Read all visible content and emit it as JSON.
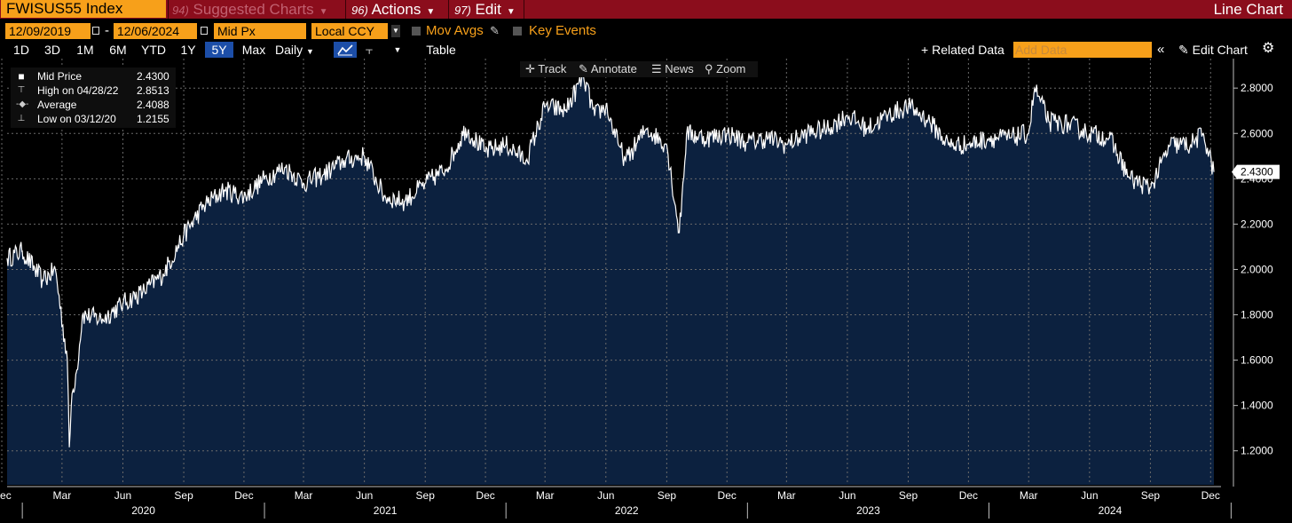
{
  "top": {
    "ticker": "FWISUS55 Index",
    "menu_suggested": {
      "num": "94)",
      "label": "Suggested Charts"
    },
    "menu_actions": {
      "num": "96)",
      "label": "Actions"
    },
    "menu_edit": {
      "num": "97)",
      "label": "Edit"
    },
    "chart_type": "Line Chart"
  },
  "controls": {
    "start_date": "12/09/2019",
    "dash": "-",
    "end_date": "12/06/2024",
    "field": "Mid Px",
    "currency": "Local CCY",
    "mov_avgs": "Mov Avgs",
    "key_events": "Key Events"
  },
  "ranges": [
    "1D",
    "3D",
    "1M",
    "6M",
    "YTD",
    "1Y",
    "5Y",
    "Max"
  ],
  "active_range": "5Y",
  "periodicity": "Daily",
  "table_label": "Table",
  "related": "Related Data",
  "add_data_placeholder": "Add Data",
  "edit_chart": "Edit Chart",
  "tools": [
    "Track",
    "Annotate",
    "News",
    "Zoom"
  ],
  "legend": {
    "mid_label": "Mid Price",
    "mid_value": "2.4300",
    "high_label": "High on 04/28/22",
    "high_value": "2.8513",
    "avg_label": "Average",
    "avg_value": "2.4088",
    "low_label": "Low on 03/12/20",
    "low_value": "1.2155"
  },
  "last_value_tag": "2.4300",
  "icons": [
    "calendar-icon",
    "dropdown-icon",
    "pencil-icon",
    "line-chart-icon",
    "bar-chart-icon",
    "plus-icon",
    "double-chevron-icon",
    "gear-icon",
    "crosshair-icon",
    "news-icon",
    "zoom-icon"
  ],
  "colors": {
    "accent": "#f7a01a",
    "header": "#8b0d1c",
    "area": "#0c213f",
    "line": "#ffffff",
    "active": "#1c4ea8"
  },
  "chart_data": {
    "type": "area",
    "x": [
      "2019-12-09",
      "2020-01-01",
      "2020-02-01",
      "2020-02-20",
      "2020-03-09",
      "2020-03-12",
      "2020-03-16",
      "2020-03-23",
      "2020-04-01",
      "2020-05-01",
      "2020-06-01",
      "2020-07-01",
      "2020-08-01",
      "2020-09-01",
      "2020-10-01",
      "2020-11-01",
      "2020-12-01",
      "2021-01-01",
      "2021-02-01",
      "2021-03-01",
      "2021-04-01",
      "2021-05-01",
      "2021-06-01",
      "2021-07-01",
      "2021-08-01",
      "2021-09-01",
      "2021-10-01",
      "2021-11-01",
      "2021-12-01",
      "2022-01-01",
      "2022-02-01",
      "2022-03-01",
      "2022-04-01",
      "2022-04-28",
      "2022-05-15",
      "2022-06-01",
      "2022-06-20",
      "2022-07-01",
      "2022-08-01",
      "2022-09-01",
      "2022-09-20",
      "2022-10-01",
      "2022-11-01",
      "2022-12-01",
      "2023-01-01",
      "2023-02-01",
      "2023-03-01",
      "2023-04-01",
      "2023-05-01",
      "2023-06-01",
      "2023-07-01",
      "2023-08-01",
      "2023-09-01",
      "2023-10-01",
      "2023-11-01",
      "2023-12-01",
      "2024-01-01",
      "2024-02-01",
      "2024-03-01",
      "2024-03-10",
      "2024-04-01",
      "2024-05-01",
      "2024-06-01",
      "2024-07-01",
      "2024-08-01",
      "2024-09-01",
      "2024-10-01",
      "2024-11-01",
      "2024-11-20",
      "2024-12-06"
    ],
    "values": [
      2.05,
      2.08,
      1.95,
      2.0,
      1.6,
      1.2155,
      1.45,
      1.55,
      1.8,
      1.78,
      1.85,
      1.9,
      1.98,
      2.15,
      2.28,
      2.35,
      2.32,
      2.4,
      2.45,
      2.38,
      2.42,
      2.48,
      2.5,
      2.32,
      2.3,
      2.38,
      2.44,
      2.62,
      2.52,
      2.55,
      2.48,
      2.72,
      2.7,
      2.8513,
      2.68,
      2.72,
      2.55,
      2.48,
      2.62,
      2.55,
      2.16,
      2.6,
      2.58,
      2.6,
      2.56,
      2.58,
      2.55,
      2.6,
      2.62,
      2.68,
      2.62,
      2.68,
      2.72,
      2.66,
      2.55,
      2.55,
      2.58,
      2.58,
      2.6,
      2.8,
      2.65,
      2.64,
      2.6,
      2.58,
      2.4,
      2.36,
      2.55,
      2.55,
      2.6,
      2.43
    ],
    "x_ticks": [
      "Dec",
      "Mar",
      "Jun",
      "Sep",
      "Dec",
      "Mar",
      "Jun",
      "Sep",
      "Dec",
      "Mar",
      "Jun",
      "Sep",
      "Dec",
      "Mar",
      "Jun",
      "Sep",
      "Dec",
      "Mar",
      "Jun",
      "Sep",
      "Dec"
    ],
    "x_years": [
      "2020",
      "2021",
      "2022",
      "2023",
      "2024"
    ],
    "y_ticks": [
      "1.2000",
      "1.4000",
      "1.6000",
      "1.8000",
      "2.0000",
      "2.2000",
      "2.4000",
      "2.6000",
      "2.8000"
    ],
    "ylim": [
      1.05,
      2.93
    ],
    "grid": true
  }
}
